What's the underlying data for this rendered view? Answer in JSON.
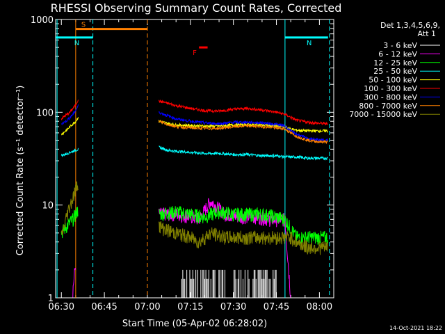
{
  "chart_data": {
    "type": "line",
    "title": "RHESSI Observing Summary Count Rates, Corrected",
    "ylabel": "Corrected Count Rate (s⁻¹ detector⁻¹)",
    "xlabel": "Start Time (05-Apr-02 06:28:02)",
    "yscale": "log",
    "ylim": [
      1,
      1000
    ],
    "y_ticks": [
      "1",
      "10",
      "100",
      "1000"
    ],
    "xlim_minutes_after_0630": [
      -2,
      95
    ],
    "x_ticks": [
      "06:30",
      "06:45",
      "07:00",
      "07:15",
      "07:30",
      "07:45",
      "08:00"
    ],
    "x_tick_minutes": [
      0,
      15,
      30,
      45,
      60,
      75,
      90
    ],
    "legend": {
      "header": [
        "Det 1,3,4,5,6,9,",
        "Att 1"
      ],
      "placement": "right"
    },
    "series": [
      {
        "name": "3 - 6 keV",
        "color": "#ffffff",
        "segments": [
          {
            "x": [
              42,
              45,
              50,
              55,
              60,
              65,
              70,
              75
            ],
            "y": [
              1.5,
              1.5,
              1.5,
              1.5,
              1.5,
              1.5,
              1.5,
              1.5
            ],
            "spiky": true
          }
        ]
      },
      {
        "name": "6 - 12 keV",
        "color": "#ff00ff",
        "segments": [
          {
            "x": [
              4,
              5
            ],
            "y": [
              1.2,
              2.4
            ]
          },
          {
            "x": [
              34,
              40,
              45,
              48,
              52,
              57,
              62,
              68,
              73,
              78,
              80
            ],
            "y": [
              8,
              8,
              7.5,
              7,
              11,
              8,
              7.5,
              7.5,
              7,
              7,
              1
            ]
          }
        ]
      },
      {
        "name": "12 - 25 keV",
        "color": "#00ff00",
        "segments": [
          {
            "x": [
              0,
              1,
              2,
              3,
              4,
              5,
              6
            ],
            "y": [
              5,
              5.5,
              6,
              6.5,
              7,
              8,
              9
            ]
          },
          {
            "x": [
              34,
              40,
              45,
              50,
              55,
              60,
              65,
              70,
              75,
              78,
              82,
              86,
              90,
              93
            ],
            "y": [
              8,
              8.5,
              8,
              7.5,
              8.5,
              8,
              8,
              8,
              7.5,
              7,
              4.5,
              4.5,
              4.5,
              4.5
            ]
          }
        ]
      },
      {
        "name": "25 - 50 keV",
        "color": "#00ffff",
        "segments": [
          {
            "x": [
              0,
              1,
              2,
              3,
              4,
              5,
              6
            ],
            "y": [
              34,
              35,
              36,
              37,
              38,
              39,
              40
            ]
          },
          {
            "x": [
              34,
              37,
              40,
              45,
              50,
              55,
              60,
              65,
              70,
              75,
              78,
              82,
              86,
              90,
              93
            ],
            "y": [
              42,
              39,
              38,
              37,
              36,
              36,
              35,
              35,
              34,
              34,
              33,
              33,
              32,
              32,
              32
            ]
          }
        ]
      },
      {
        "name": "50 - 100 keV",
        "color": "#ffff00",
        "segments": [
          {
            "x": [
              0,
              1,
              2,
              3,
              4,
              5,
              6
            ],
            "y": [
              58,
              61,
              65,
              70,
              75,
              80,
              90
            ]
          },
          {
            "x": [
              34,
              37,
              40,
              45,
              50,
              55,
              60,
              65,
              70,
              75,
              78,
              80,
              82,
              86,
              90,
              93
            ],
            "y": [
              80,
              76,
              73,
              72,
              71,
              71,
              73,
              74,
              73,
              71,
              70,
              66,
              64,
              63,
              63,
              63
            ]
          }
        ]
      },
      {
        "name": "100 - 300 keV",
        "color": "#ff0000",
        "segments": [
          {
            "x": [
              0,
              1,
              2,
              3,
              4,
              5,
              6
            ],
            "y": [
              85,
              90,
              95,
              100,
              110,
              120,
              140
            ]
          },
          {
            "x": [
              34,
              37,
              40,
              45,
              50,
              55,
              60,
              65,
              70,
              75,
              78,
              80,
              82,
              86,
              90,
              93
            ],
            "y": [
              132,
              125,
              118,
              110,
              104,
              103,
              108,
              110,
              106,
              100,
              95,
              88,
              82,
              78,
              76,
              75
            ]
          }
        ]
      },
      {
        "name": "300 - 800 keV",
        "color": "#0000ff",
        "segments": [
          {
            "x": [
              0,
              1,
              2,
              3,
              4,
              5,
              6
            ],
            "y": [
              75,
              78,
              82,
              88,
              95,
              105,
              120
            ]
          },
          {
            "x": [
              34,
              37,
              40,
              45,
              50,
              55,
              60,
              65,
              70,
              75,
              78,
              80,
              82,
              86,
              90,
              93
            ],
            "y": [
              100,
              92,
              85,
              80,
              77,
              75,
              78,
              78,
              77,
              74,
              71,
              63,
              58,
              52,
              50,
              50
            ]
          }
        ]
      },
      {
        "name": "800 - 7000 keV",
        "color": "#ff8000",
        "segments": [
          {
            "x": [
              34,
              37,
              40,
              45,
              50,
              55,
              60,
              65,
              70,
              75,
              78,
              80,
              82,
              86,
              90,
              93
            ],
            "y": [
              80,
              74,
              70,
              68,
              67,
              67,
              70,
              71,
              70,
              68,
              66,
              60,
              55,
              50,
              48,
              48
            ]
          }
        ]
      },
      {
        "name": "7000 - 15000 keV",
        "color": "#808000",
        "segments": [
          {
            "x": [
              0,
              1,
              2,
              3,
              4,
              5,
              6
            ],
            "y": [
              4.5,
              6,
              8,
              10,
              12,
              15,
              18
            ]
          },
          {
            "x": [
              34,
              36,
              40,
              45,
              48,
              52,
              57,
              62,
              68,
              73,
              78,
              80,
              82,
              86,
              90,
              93
            ],
            "y": [
              6,
              5.5,
              5,
              4.5,
              4,
              5,
              4.5,
              4.5,
              4.5,
              4.5,
              4.5,
              4.5,
              4,
              3.5,
              3.5,
              3.5
            ]
          }
        ]
      }
    ],
    "flags": [
      {
        "label": "S",
        "color": "#ff8000",
        "x_start": 5,
        "x_end": 30,
        "y": 790
      },
      {
        "label": "N",
        "color": "#00ffff",
        "x_start": -2,
        "x_end": 11,
        "y": 640
      },
      {
        "label": "N",
        "color": "#00ffff",
        "x_start": 78,
        "x_end": 93,
        "y": 640
      },
      {
        "label": "F",
        "color": "#ff0000",
        "x_start": 48,
        "x_end": 51,
        "y": 500
      }
    ],
    "vlines": [
      {
        "x": -1.5,
        "color": "#00ffff",
        "dashed": false
      },
      {
        "x": 5,
        "color": "#ff8000",
        "dashed": false
      },
      {
        "x": 11,
        "color": "#00ffff",
        "dashed": true
      },
      {
        "x": 30,
        "color": "#ff8000",
        "dashed": true
      },
      {
        "x": 78,
        "color": "#00ffff",
        "dashed": false
      },
      {
        "x": 93.5,
        "color": "#00ffff",
        "dashed": true
      }
    ]
  },
  "footer_timestamp": "14-Oct-2021 18:22"
}
